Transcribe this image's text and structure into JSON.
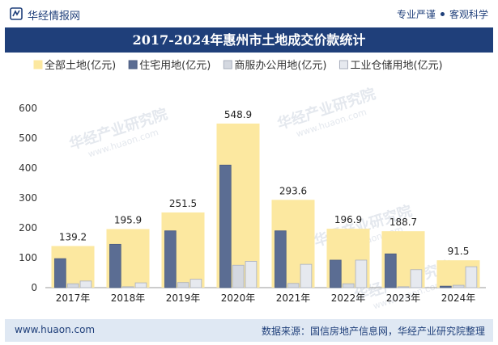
{
  "header": {
    "brand": "华经情报网",
    "tag1": "专业严谨",
    "tag2": "客观科学"
  },
  "footer": {
    "site": "www.huaon.com",
    "source": "数据来源：国信房地产信息网，华经产业研究院整理"
  },
  "watermark": "华经产业研究院",
  "watermark_url": "www.huaon.com",
  "colors": {
    "total": "#fce8a0",
    "residential": "#5b6d93",
    "commercial": "#d4d8e0",
    "industrial": "#e6e9ef",
    "title_bg": "#1f3f7a"
  },
  "chart_data": {
    "type": "bar",
    "title": "2017-2024年惠州市土地成交价款统计",
    "categories": [
      "2017年",
      "2018年",
      "2019年",
      "2020年",
      "2021年",
      "2022年",
      "2023年",
      "2024年"
    ],
    "series": [
      {
        "name": "全部土地(亿元)",
        "values": [
          139.2,
          195.9,
          251.5,
          548.9,
          293.6,
          196.9,
          188.7,
          91.5
        ]
      },
      {
        "name": "住宅用地(亿元)",
        "values": [
          97,
          145,
          190,
          410,
          190,
          92,
          113,
          5
        ]
      },
      {
        "name": "商服办公用地(亿元)",
        "values": [
          13,
          3,
          17,
          75,
          14,
          13,
          3,
          8
        ]
      },
      {
        "name": "工业仓储用地(亿元)",
        "values": [
          22,
          16,
          28,
          88,
          78,
          92,
          60,
          70
        ]
      }
    ],
    "data_labels": [
      "139.2",
      "195.9",
      "251.5",
      "548.9",
      "293.6",
      "196.9",
      "188.7",
      "91.5"
    ],
    "yticks": [
      "0",
      "100",
      "200",
      "300",
      "400",
      "500",
      "600"
    ],
    "ylim": [
      0,
      600
    ],
    "legend_position": "top"
  }
}
